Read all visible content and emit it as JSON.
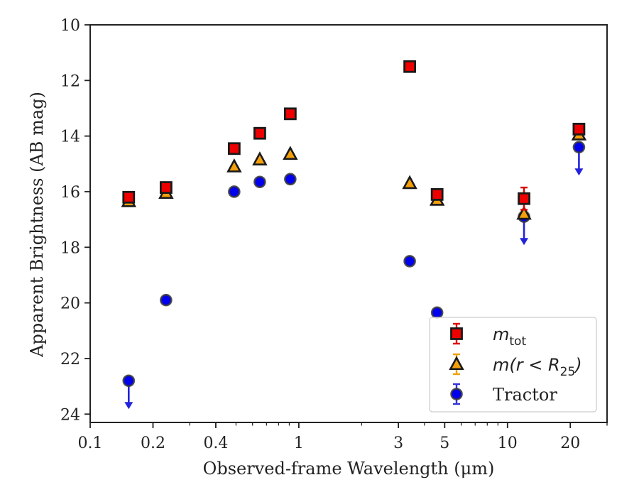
{
  "chart_data": {
    "type": "scatter",
    "xlabel": "Observed-frame Wavelength (μm)",
    "ylabel": "Apparent Brightness (AB mag)",
    "xscale": "log",
    "xlim": [
      0.1,
      30
    ],
    "ylim": [
      24.3,
      10
    ],
    "y_inverted": true,
    "grid": false,
    "legend_position": "lower-right",
    "xticks": [
      0.1,
      0.2,
      0.4,
      1,
      3,
      5,
      10,
      20
    ],
    "xtick_labels": [
      "0.1",
      "0.2",
      "0.4",
      "1",
      "3",
      "5",
      "10",
      "20"
    ],
    "yticks": [
      10,
      12,
      14,
      16,
      18,
      20,
      22,
      24
    ],
    "ytick_labels": [
      "10",
      "12",
      "14",
      "16",
      "18",
      "20",
      "22",
      "24"
    ],
    "series": [
      {
        "name": "m_tot",
        "legend_label": "m",
        "legend_sub": "tot",
        "marker": "square",
        "fill": "#ee0000",
        "errorbar_color": "#dd0000",
        "points": [
          {
            "x": 0.153,
            "y": 16.2
          },
          {
            "x": 0.231,
            "y": 15.85
          },
          {
            "x": 0.49,
            "y": 14.45
          },
          {
            "x": 0.65,
            "y": 13.9
          },
          {
            "x": 0.91,
            "y": 13.2
          },
          {
            "x": 3.4,
            "y": 11.5
          },
          {
            "x": 4.6,
            "y": 16.1
          },
          {
            "x": 12.0,
            "y": 16.25,
            "err": 0.4
          },
          {
            "x": 22.0,
            "y": 13.75
          }
        ]
      },
      {
        "name": "m(r < R25)",
        "legend_label": "m(r < R",
        "legend_sub": "25",
        "legend_suffix": ")",
        "marker": "triangle",
        "fill": "#f5a00a",
        "errorbar_color": "#f0a000",
        "points": [
          {
            "x": 0.153,
            "y": 16.35
          },
          {
            "x": 0.231,
            "y": 16.05
          },
          {
            "x": 0.49,
            "y": 15.1
          },
          {
            "x": 0.65,
            "y": 14.85
          },
          {
            "x": 0.91,
            "y": 14.65
          },
          {
            "x": 3.4,
            "y": 15.7
          },
          {
            "x": 4.6,
            "y": 16.3
          },
          {
            "x": 12.0,
            "y": 16.8
          },
          {
            "x": 22.0,
            "y": 13.95
          }
        ]
      },
      {
        "name": "Tractor",
        "legend_label": "Tractor",
        "marker": "circle",
        "fill": "#0000ee",
        "errorbar_color": "#3333dd",
        "points": [
          {
            "x": 0.153,
            "y": 22.8,
            "upper_limit": true
          },
          {
            "x": 0.231,
            "y": 19.9
          },
          {
            "x": 0.49,
            "y": 16.0
          },
          {
            "x": 0.65,
            "y": 15.65
          },
          {
            "x": 0.91,
            "y": 15.55
          },
          {
            "x": 3.4,
            "y": 18.5
          },
          {
            "x": 4.6,
            "y": 20.35
          },
          {
            "x": 12.0,
            "y": 16.9,
            "upper_limit": true
          },
          {
            "x": 22.0,
            "y": 14.4,
            "upper_limit": true
          }
        ]
      }
    ]
  }
}
